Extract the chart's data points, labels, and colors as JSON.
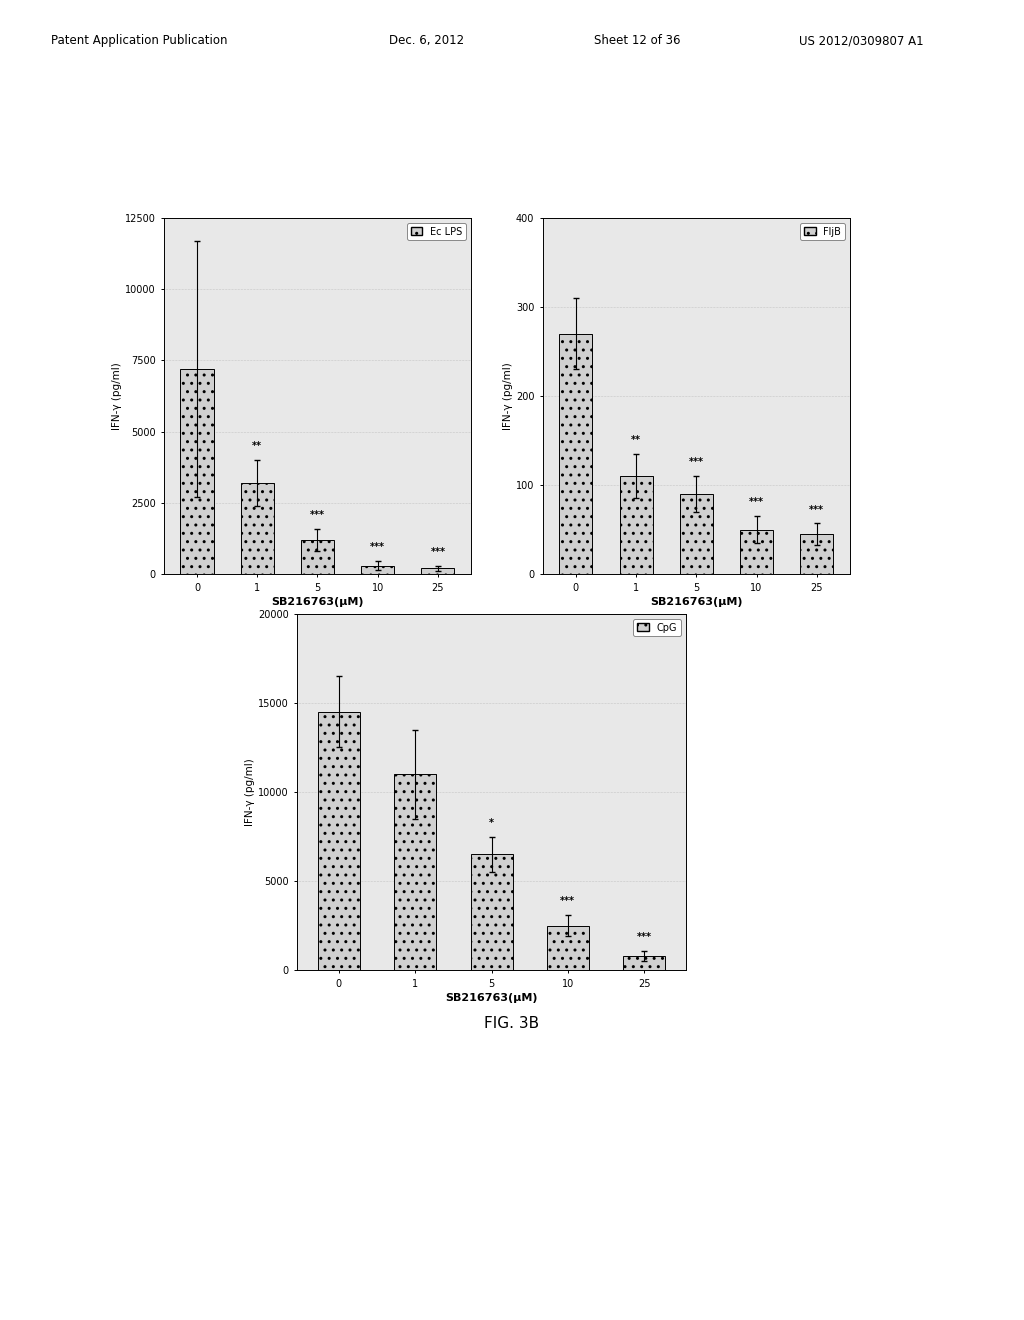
{
  "chart1": {
    "title": "Ec LPS",
    "xlabel": "SB216763(μM)",
    "ylabel": "IFN-γ (pg/ml)",
    "categories": [
      "0",
      "1",
      "5",
      "10",
      "25"
    ],
    "values": [
      7200,
      3200,
      1200,
      300,
      200
    ],
    "errors": [
      4500,
      800,
      400,
      150,
      100
    ],
    "ylim": [
      0,
      12500
    ],
    "yticks": [
      0,
      2500,
      5000,
      7500,
      10000,
      12500
    ],
    "significance": [
      "",
      "**",
      "***",
      "***",
      "***"
    ]
  },
  "chart2": {
    "title": "FljB",
    "xlabel": "SB216763(μM)",
    "ylabel": "IFN-γ (pg/ml)",
    "categories": [
      "0",
      "1",
      "5",
      "10",
      "25"
    ],
    "values": [
      270,
      110,
      90,
      50,
      45
    ],
    "errors": [
      40,
      25,
      20,
      15,
      12
    ],
    "ylim": [
      0,
      400
    ],
    "yticks": [
      0,
      100,
      200,
      300,
      400
    ],
    "significance": [
      "",
      "**",
      "***",
      "***",
      "***"
    ]
  },
  "chart3": {
    "title": "CpG",
    "xlabel": "SB216763(μM)",
    "ylabel": "IFN-γ (pg/ml)",
    "categories": [
      "0",
      "1",
      "5",
      "10",
      "25"
    ],
    "values": [
      14500,
      11000,
      6500,
      2500,
      800
    ],
    "errors": [
      2000,
      2500,
      1000,
      600,
      300
    ],
    "ylim": [
      0,
      20000
    ],
    "yticks": [
      0,
      5000,
      10000,
      15000,
      20000
    ],
    "significance": [
      "",
      "",
      "*",
      "***",
      "***"
    ]
  },
  "bar_hatch": "..",
  "figure_caption": "FIG. 3B",
  "header_left": "Patent Application Publication",
  "header_date": "Dec. 6, 2012",
  "header_sheet": "Sheet 12 of 36",
  "header_right": "US 2012/0309807 A1",
  "background_color": "#e8e8e8"
}
